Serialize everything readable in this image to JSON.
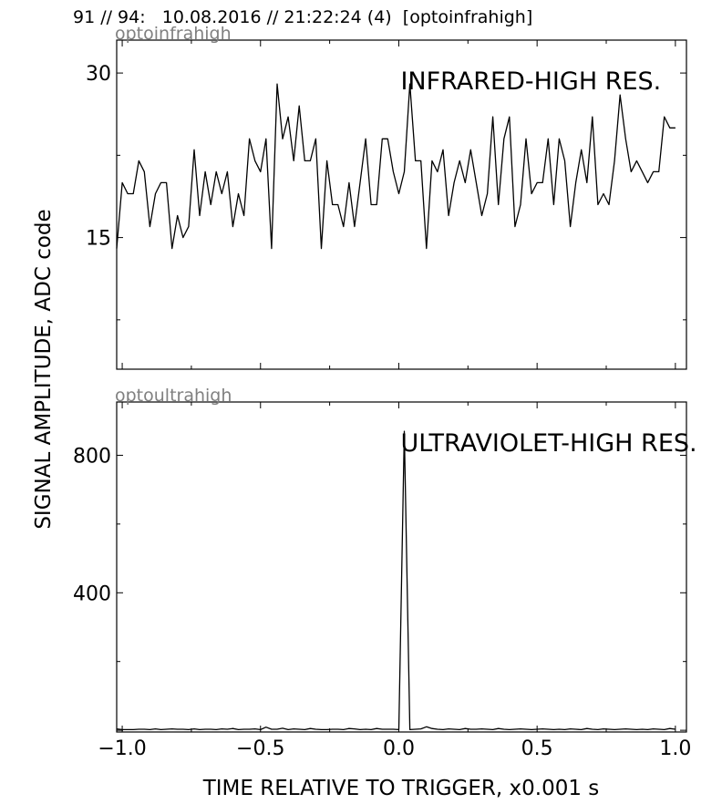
{
  "header": {
    "title": "91 // 94:   10.08.2016 // 21:22:24 (4)  [optoinfrahigh]"
  },
  "chart_data": {
    "type": "line",
    "ylabel": "SIGNAL AMPLITUDE,  ADC code",
    "xlabel": "TIME RELATIVE TO TRIGGER,   x0.001 s",
    "xlim": [
      -1.02,
      1.04
    ],
    "xticks": [
      -1.0,
      -0.5,
      0.0,
      0.5,
      1.0
    ],
    "xtick_labels": [
      "−1.0",
      "−0.5",
      "0.0",
      "0.5",
      "1.0"
    ],
    "panels": [
      {
        "channel": "optoinfrahigh",
        "annotation": "INFRARED-HIGH RES.",
        "ylim": [
          3,
          33
        ],
        "yticks": [
          15,
          30
        ],
        "ytick_labels": [
          "15",
          "30"
        ],
        "x_start": -1.02,
        "x_step": 0.02,
        "values": [
          14,
          20,
          19,
          19,
          22,
          21,
          16,
          19,
          20,
          20,
          14,
          17,
          15,
          16,
          23,
          17,
          21,
          18,
          21,
          19,
          21,
          16,
          19,
          17,
          24,
          22,
          21,
          24,
          14,
          29,
          24,
          26,
          22,
          27,
          22,
          22,
          24,
          14,
          22,
          18,
          18,
          16,
          20,
          16,
          20,
          24,
          18,
          18,
          24,
          24,
          21,
          19,
          21,
          29,
          22,
          22,
          14,
          22,
          21,
          23,
          17,
          20,
          22,
          20,
          23,
          20,
          17,
          19,
          26,
          18,
          24,
          26,
          16,
          18,
          24,
          19,
          20,
          20,
          24,
          18,
          24,
          22,
          16,
          20,
          23,
          20,
          26,
          18,
          19,
          18,
          22,
          28,
          24,
          21,
          22,
          21,
          20,
          21,
          21,
          26,
          25,
          25
        ]
      },
      {
        "channel": "optoultrahigh",
        "annotation": "ULTRAVIOLET-HIGH RES.",
        "ylim": [
          -5,
          955
        ],
        "yticks": [
          400,
          800
        ],
        "ytick_labels": [
          "400",
          "800"
        ],
        "x_start": -1.02,
        "x_step": 0.02,
        "values": [
          4,
          2,
          2,
          2,
          3,
          3,
          2,
          4,
          2,
          3,
          4,
          3,
          3,
          2,
          4,
          2,
          3,
          3,
          2,
          4,
          3,
          5,
          2,
          3,
          3,
          4,
          2,
          9,
          3,
          3,
          6,
          2,
          4,
          3,
          2,
          5,
          3,
          2,
          2,
          3,
          3,
          2,
          5,
          4,
          2,
          3,
          2,
          5,
          3,
          3,
          3,
          2,
          870,
          2,
          3,
          4,
          10,
          5,
          3,
          2,
          4,
          3,
          2,
          5,
          3,
          3,
          4,
          3,
          2,
          5,
          3,
          2,
          3,
          4,
          3,
          2,
          3,
          4,
          3,
          2,
          3,
          2,
          4,
          3,
          2,
          5,
          3,
          2,
          4,
          3,
          2,
          3,
          4,
          3,
          2,
          3,
          2,
          4,
          3,
          2,
          5,
          3
        ]
      }
    ]
  }
}
